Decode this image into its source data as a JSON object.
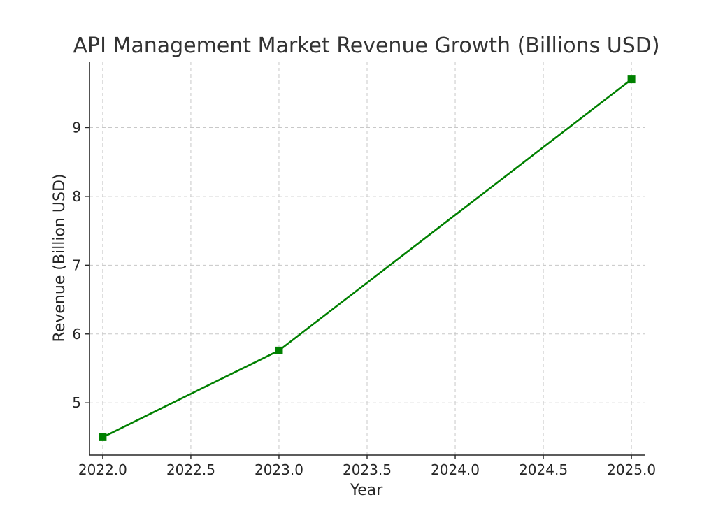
{
  "chart_data": {
    "type": "line",
    "title": "API Management Market Revenue Growth (Billions USD)",
    "xlabel": "Year",
    "ylabel": "Revenue (Billion USD)",
    "x": [
      2022,
      2023,
      2025
    ],
    "series": [
      {
        "values": [
          4.5,
          5.76,
          9.7
        ],
        "color": "#008000",
        "marker": "square"
      }
    ],
    "xlim": [
      2021.925,
      2025.075
    ],
    "ylim": [
      4.24,
      9.96
    ],
    "xticks": [
      2022.0,
      2022.5,
      2023.0,
      2023.5,
      2024.0,
      2024.5,
      2025.0
    ],
    "xtick_labels": [
      "2022.0",
      "2022.5",
      "2023.0",
      "2023.5",
      "2024.0",
      "2024.5",
      "2025.0"
    ],
    "yticks": [
      5,
      6,
      7,
      8,
      9
    ],
    "ytick_labels": [
      "5",
      "6",
      "7",
      "8",
      "9"
    ],
    "grid": true,
    "grid_style": "dashed"
  }
}
